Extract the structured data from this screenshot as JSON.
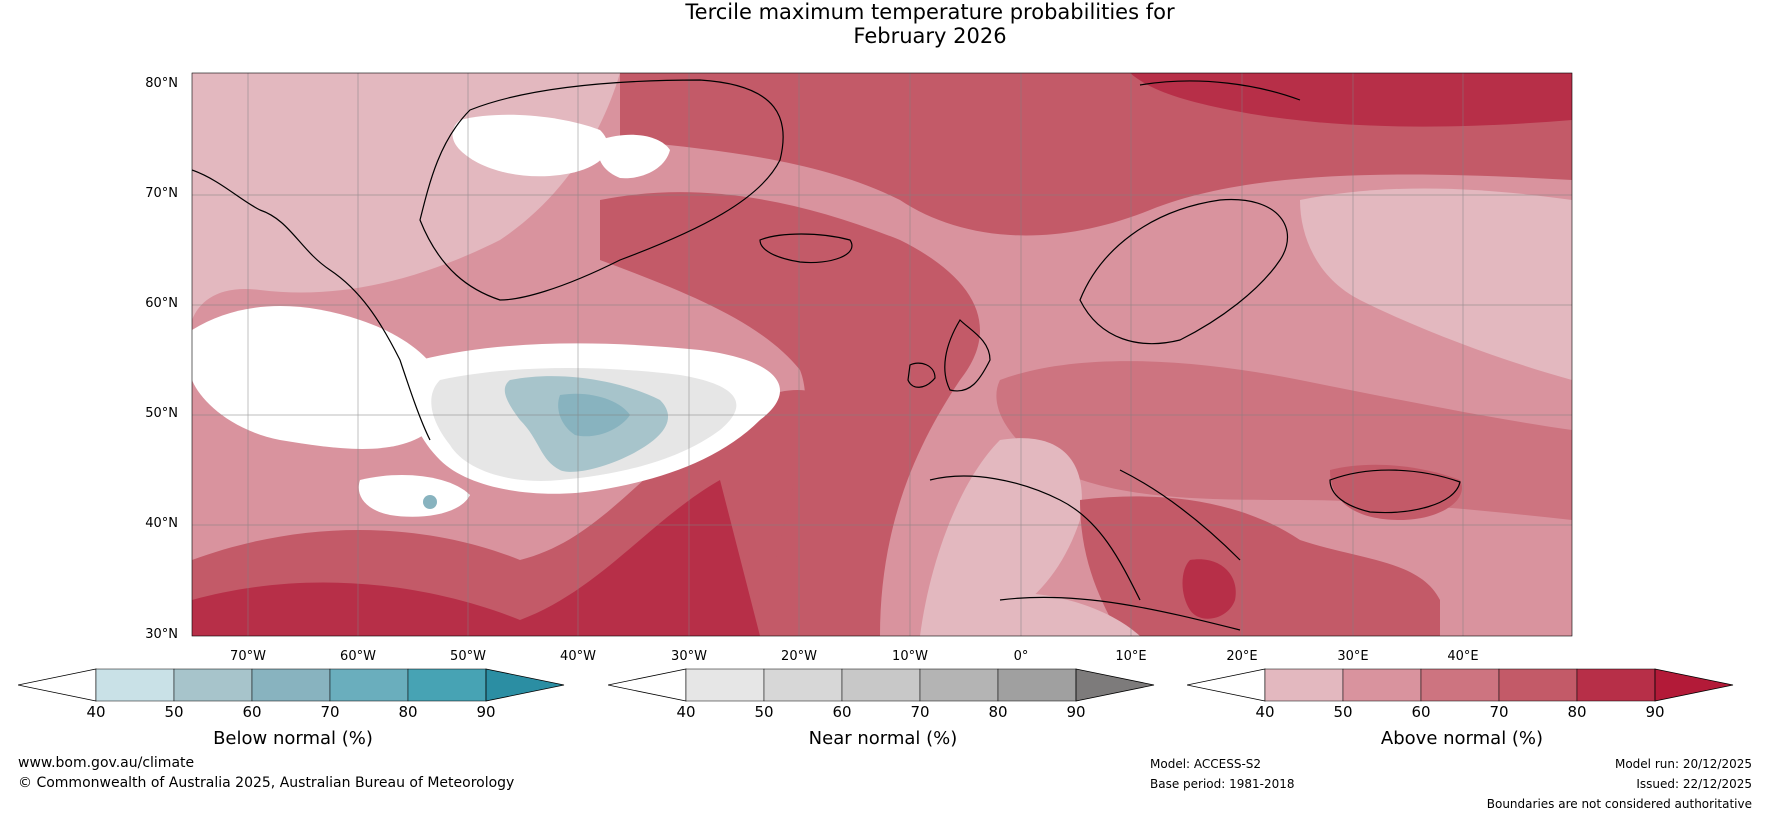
{
  "title_line1": "Tercile maximum temperature probabilities for",
  "title_line2": "February 2026",
  "lat_labels": [
    "80°N",
    "70°N",
    "60°N",
    "50°N",
    "40°N",
    "30°N"
  ],
  "lon_labels": [
    "70°W",
    "60°W",
    "50°W",
    "40°W",
    "30°W",
    "20°W",
    "10°W",
    "0°",
    "10°E",
    "20°E",
    "30°E",
    "40°E"
  ],
  "colorbars": [
    {
      "title": "Below normal (%)",
      "ticks": [
        "40",
        "50",
        "60",
        "70",
        "80",
        "90"
      ],
      "colors": [
        "#ffffff",
        "#c9e1e7",
        "#a7c4cb",
        "#88b3bf",
        "#6aaebd",
        "#47a3b4",
        "#2b8ea3"
      ]
    },
    {
      "title": "Near normal (%)",
      "ticks": [
        "40",
        "50",
        "60",
        "70",
        "80",
        "90"
      ],
      "colors": [
        "#ffffff",
        "#e6e6e6",
        "#d7d7d7",
        "#c8c8c8",
        "#b4b4b4",
        "#a0a0a0",
        "#7d7b7b"
      ]
    },
    {
      "title": "Above normal (%)",
      "ticks": [
        "40",
        "50",
        "60",
        "70",
        "80",
        "90"
      ],
      "colors": [
        "#ffffff",
        "#e3b8bf",
        "#d9939e",
        "#cd7480",
        "#c35a68",
        "#b72f48",
        "#b31a38"
      ]
    }
  ],
  "footer": {
    "website": "www.bom.gov.au/climate",
    "copyright": "© Commonwealth of Australia 2025, Australian Bureau of Meteorology",
    "model": "Model: ACCESS-S2",
    "base_period": "Base period: 1981-2018",
    "model_run": "Model run: 20/12/2025",
    "issued": "Issued: 22/12/2025",
    "disclaimer": "Boundaries are not considered authoritative"
  }
}
